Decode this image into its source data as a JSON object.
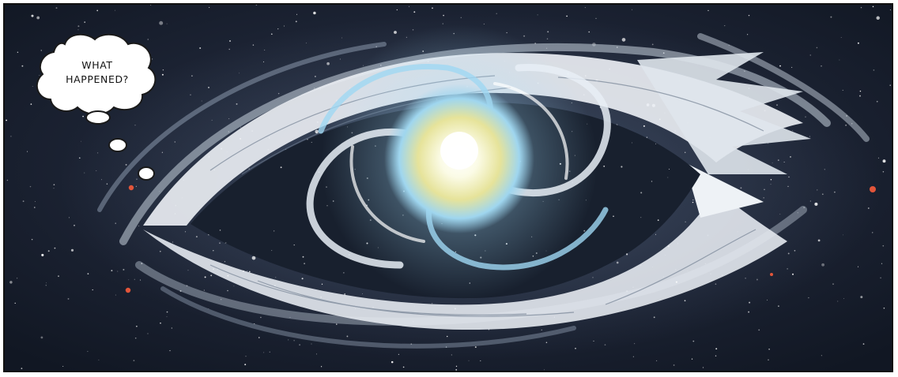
{
  "panel": {
    "thought_bubble": {
      "text": "WHAT\nHAPPENED?"
    },
    "colors": {
      "space": "#1d2433",
      "space_dark": "#121826",
      "eye_white": "#e9edf2",
      "iris_blue": "#8fd0f0",
      "core_yellow": "#e8e59a",
      "star_red": "#e2553a",
      "border": "#111111"
    }
  }
}
